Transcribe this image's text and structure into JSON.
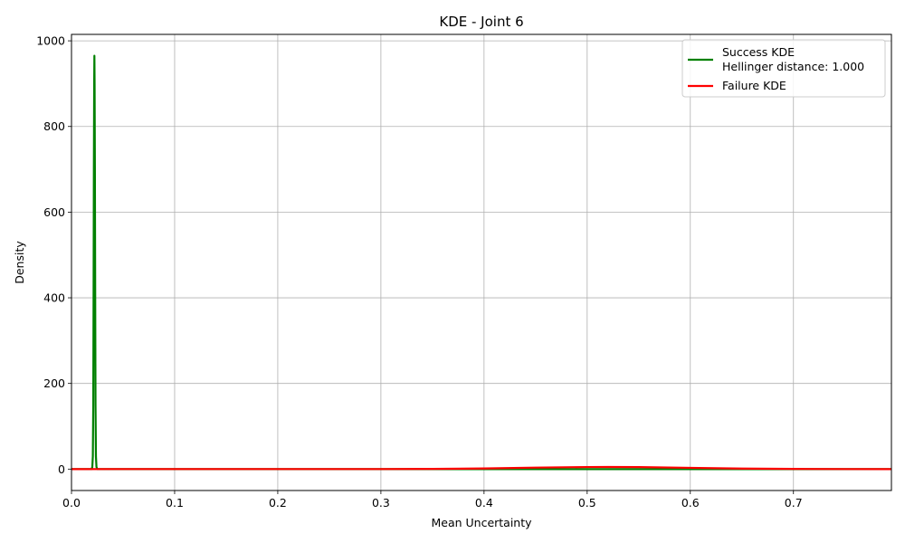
{
  "chart_data": {
    "type": "line",
    "title": "KDE - Joint 6",
    "xlabel": "Mean Uncertainty",
    "ylabel": "Density",
    "xlim": [
      0.0,
      0.795
    ],
    "ylim": [
      -50,
      1015
    ],
    "xticks": [
      0.0,
      0.1,
      0.2,
      0.3,
      0.4,
      0.5,
      0.6,
      0.7
    ],
    "xtick_labels": [
      "0.0",
      "0.1",
      "0.2",
      "0.3",
      "0.4",
      "0.5",
      "0.6",
      "0.7"
    ],
    "yticks": [
      0,
      200,
      400,
      600,
      800,
      1000
    ],
    "ytick_labels": [
      "0",
      "200",
      "400",
      "600",
      "800",
      "1000"
    ],
    "grid": true,
    "legend_position": "top-right",
    "series": [
      {
        "name": "Success KDE\nHellinger distance: 1.000",
        "legend_lines": [
          "Success KDE",
          "Hellinger distance: 1.000"
        ],
        "color": "#008000",
        "x": [
          0.0,
          0.0195,
          0.0202,
          0.0207,
          0.0211,
          0.0214,
          0.0217,
          0.022,
          0.0222,
          0.0224,
          0.0227,
          0.023,
          0.0233,
          0.0237,
          0.0242,
          0.025,
          0.03,
          0.795
        ],
        "y": [
          0,
          0,
          5,
          30,
          150,
          400,
          700,
          900,
          965,
          900,
          700,
          400,
          150,
          30,
          5,
          0,
          0,
          0
        ]
      },
      {
        "name": "Failure KDE",
        "legend_lines": [
          "Failure KDE"
        ],
        "color": "#ff0000",
        "x": [
          0.0,
          0.3,
          0.35,
          0.4,
          0.45,
          0.5,
          0.52,
          0.55,
          0.6,
          0.65,
          0.7,
          0.75,
          0.795
        ],
        "y": [
          0,
          0.1,
          0.5,
          1.5,
          3.5,
          4.8,
          5.0,
          4.6,
          3.0,
          1.2,
          0.4,
          0.1,
          0
        ]
      }
    ]
  }
}
